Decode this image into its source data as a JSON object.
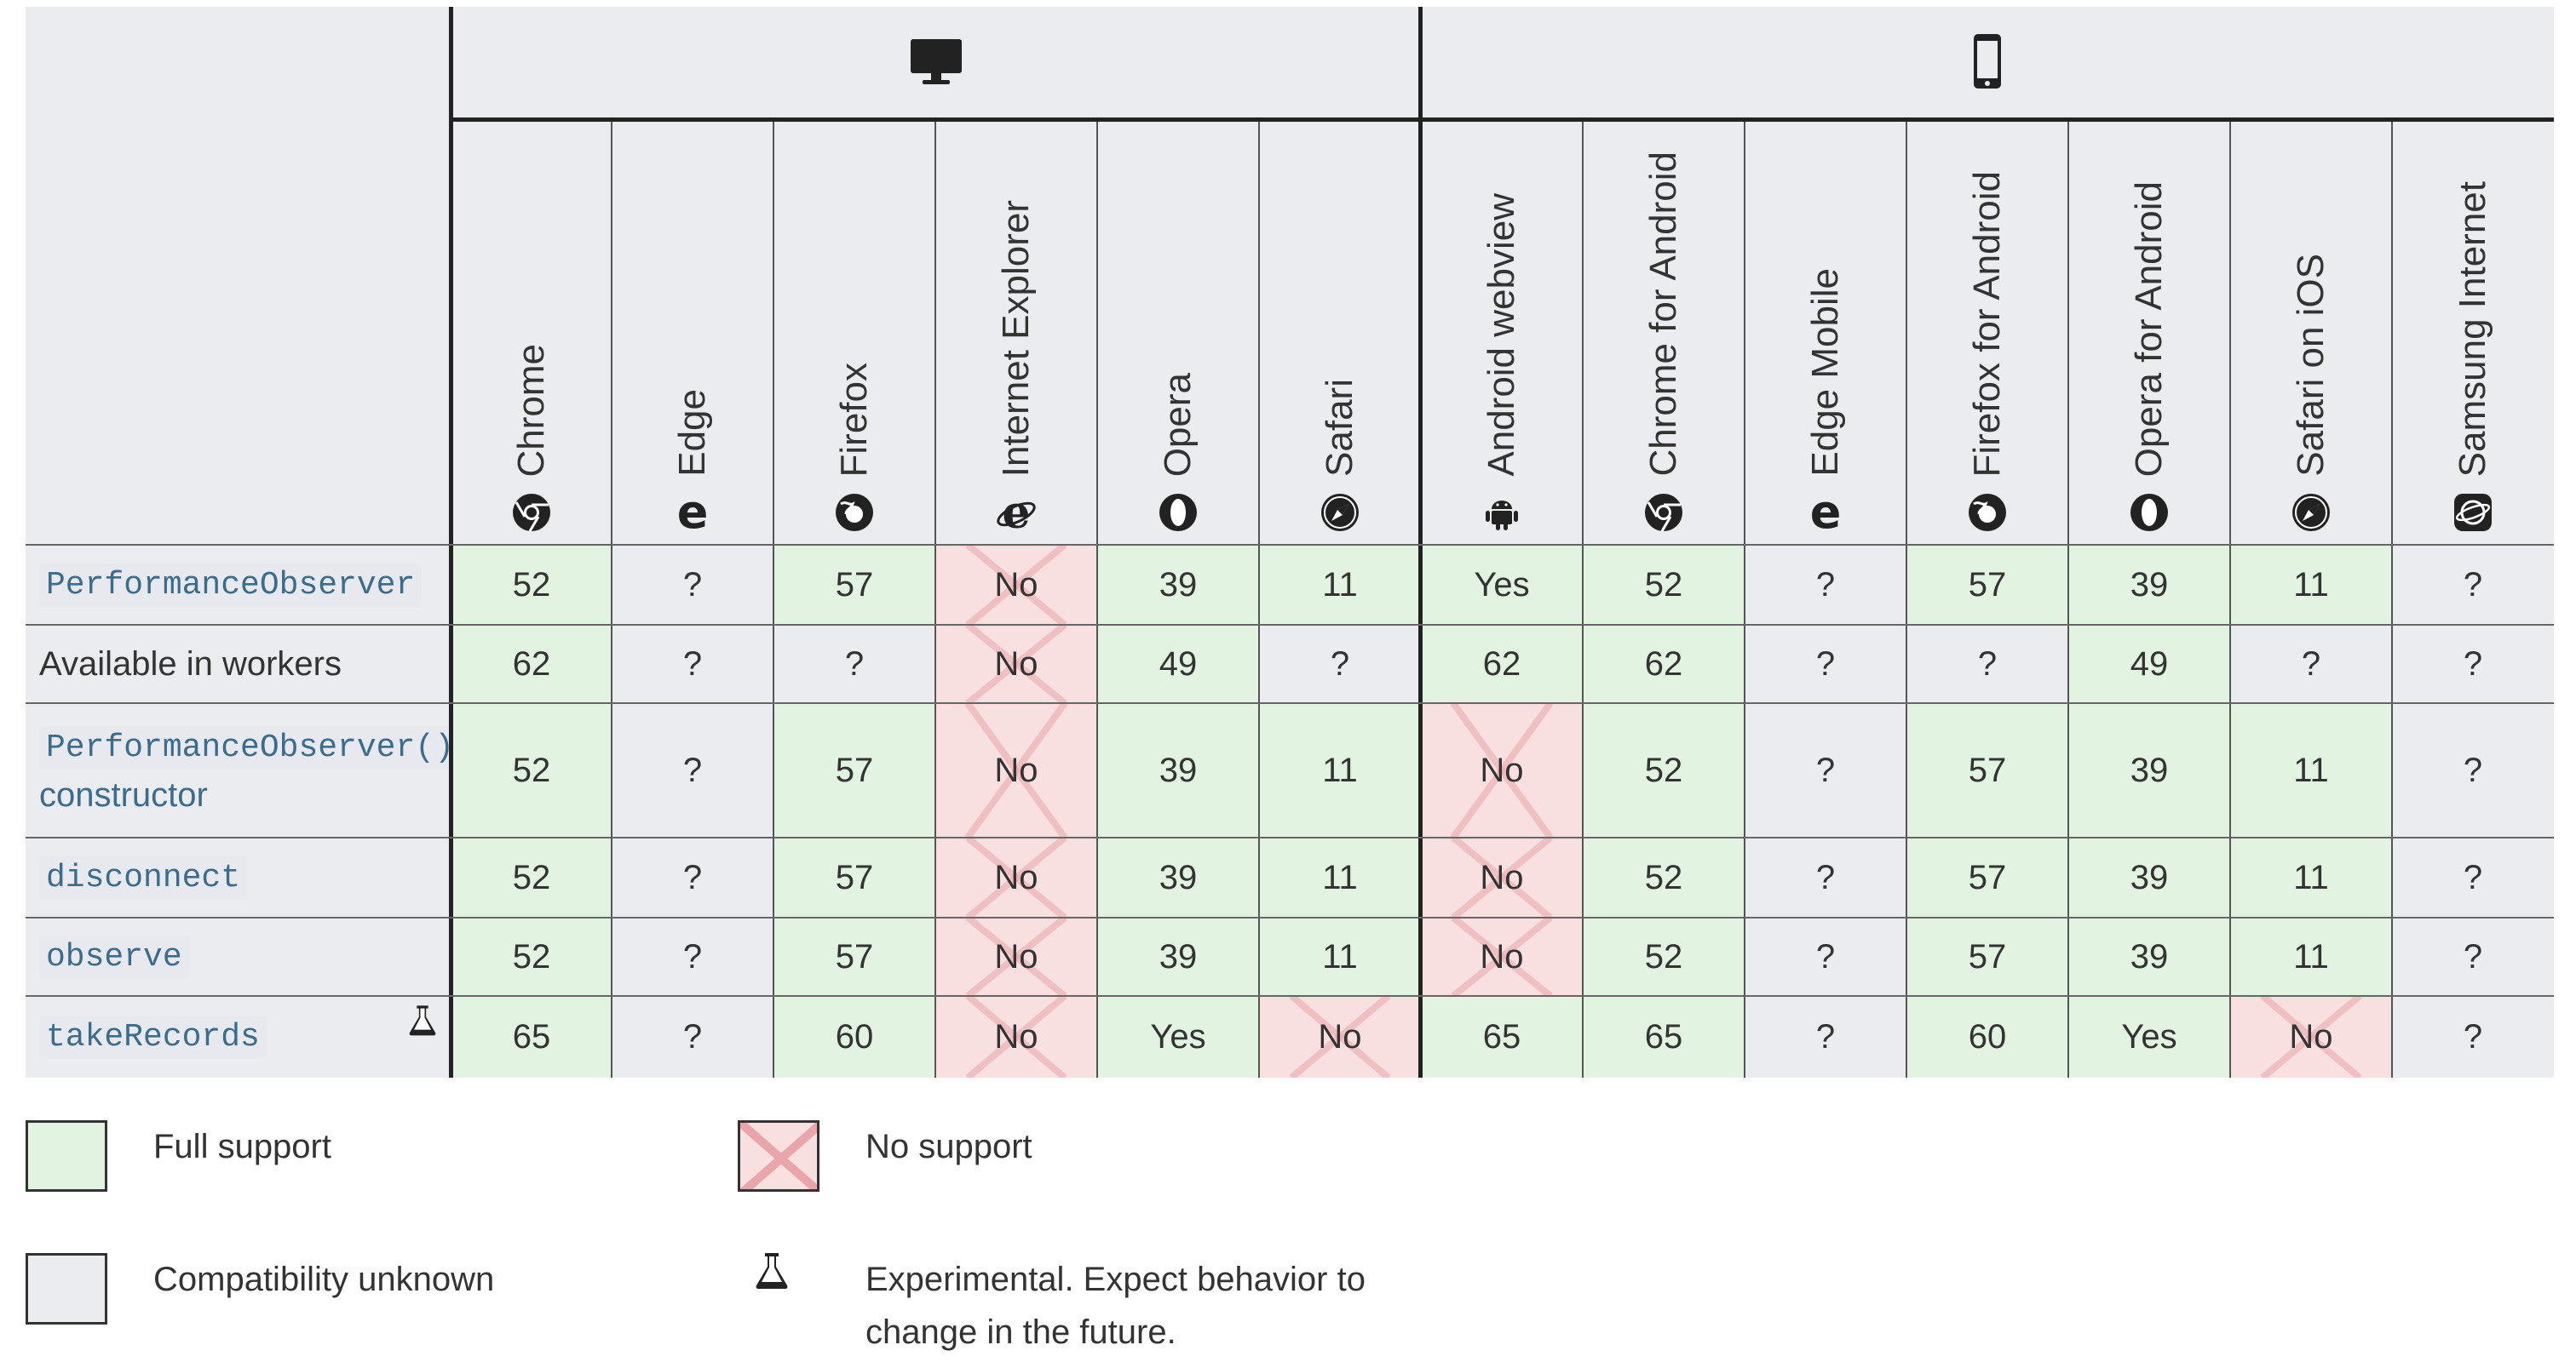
{
  "platforms": [
    {
      "name": "desktop-icon",
      "label": "desktop"
    },
    {
      "name": "mobile-icon",
      "label": "mobile"
    }
  ],
  "browsers": [
    {
      "name": "Chrome",
      "icon": "chrome-icon"
    },
    {
      "name": "Edge",
      "icon": "edge-icon"
    },
    {
      "name": "Firefox",
      "icon": "firefox-icon"
    },
    {
      "name": "Internet Explorer",
      "icon": "internet-explorer-icon"
    },
    {
      "name": "Opera",
      "icon": "opera-icon"
    },
    {
      "name": "Safari",
      "icon": "safari-icon"
    },
    {
      "name": "Android webview",
      "icon": "android-icon"
    },
    {
      "name": "Chrome for Android",
      "icon": "chrome-icon"
    },
    {
      "name": "Edge Mobile",
      "icon": "edge-icon"
    },
    {
      "name": "Firefox for Android",
      "icon": "firefox-icon"
    },
    {
      "name": "Opera for Android",
      "icon": "opera-icon"
    },
    {
      "name": "Safari on iOS",
      "icon": "safari-icon"
    },
    {
      "name": "Samsung Internet",
      "icon": "samsung-internet-icon"
    }
  ],
  "rows": [
    {
      "label": "PerformanceObserver",
      "label_style": "code",
      "sublabel": "",
      "cells": [
        [
          "52",
          "full"
        ],
        [
          "?",
          "unknown"
        ],
        [
          "57",
          "full"
        ],
        [
          "No",
          "none"
        ],
        [
          "39",
          "full"
        ],
        [
          "11",
          "full"
        ],
        [
          "Yes",
          "full"
        ],
        [
          "52",
          "full"
        ],
        [
          "?",
          "unknown"
        ],
        [
          "57",
          "full"
        ],
        [
          "39",
          "full"
        ],
        [
          "11",
          "full"
        ],
        [
          "?",
          "unknown"
        ]
      ]
    },
    {
      "label": "Available in workers",
      "label_style": "plain",
      "sublabel": "",
      "cells": [
        [
          "62",
          "full"
        ],
        [
          "?",
          "unknown"
        ],
        [
          "?",
          "unknown"
        ],
        [
          "No",
          "none"
        ],
        [
          "49",
          "full"
        ],
        [
          "?",
          "unknown"
        ],
        [
          "62",
          "full"
        ],
        [
          "62",
          "full"
        ],
        [
          "?",
          "unknown"
        ],
        [
          "?",
          "unknown"
        ],
        [
          "49",
          "full"
        ],
        [
          "?",
          "unknown"
        ],
        [
          "?",
          "unknown"
        ]
      ]
    },
    {
      "label": "PerformanceObserver()",
      "label_style": "code",
      "sublabel": "constructor",
      "cells": [
        [
          "52",
          "full"
        ],
        [
          "?",
          "unknown"
        ],
        [
          "57",
          "full"
        ],
        [
          "No",
          "none"
        ],
        [
          "39",
          "full"
        ],
        [
          "11",
          "full"
        ],
        [
          "No",
          "none"
        ],
        [
          "52",
          "full"
        ],
        [
          "?",
          "unknown"
        ],
        [
          "57",
          "full"
        ],
        [
          "39",
          "full"
        ],
        [
          "11",
          "full"
        ],
        [
          "?",
          "unknown"
        ]
      ]
    },
    {
      "label": "disconnect",
      "label_style": "code",
      "sublabel": "",
      "cells": [
        [
          "52",
          "full"
        ],
        [
          "?",
          "unknown"
        ],
        [
          "57",
          "full"
        ],
        [
          "No",
          "none"
        ],
        [
          "39",
          "full"
        ],
        [
          "11",
          "full"
        ],
        [
          "No",
          "none"
        ],
        [
          "52",
          "full"
        ],
        [
          "?",
          "unknown"
        ],
        [
          "57",
          "full"
        ],
        [
          "39",
          "full"
        ],
        [
          "11",
          "full"
        ],
        [
          "?",
          "unknown"
        ]
      ]
    },
    {
      "label": "observe",
      "label_style": "code",
      "sublabel": "",
      "cells": [
        [
          "52",
          "full"
        ],
        [
          "?",
          "unknown"
        ],
        [
          "57",
          "full"
        ],
        [
          "No",
          "none"
        ],
        [
          "39",
          "full"
        ],
        [
          "11",
          "full"
        ],
        [
          "No",
          "none"
        ],
        [
          "52",
          "full"
        ],
        [
          "?",
          "unknown"
        ],
        [
          "57",
          "full"
        ],
        [
          "39",
          "full"
        ],
        [
          "11",
          "full"
        ],
        [
          "?",
          "unknown"
        ]
      ]
    },
    {
      "label": "takeRecords",
      "label_style": "code",
      "sublabel": "",
      "experimental": true,
      "cells": [
        [
          "65",
          "full"
        ],
        [
          "?",
          "unknown"
        ],
        [
          "60",
          "full"
        ],
        [
          "No",
          "none"
        ],
        [
          "Yes",
          "full"
        ],
        [
          "No",
          "none"
        ],
        [
          "65",
          "full"
        ],
        [
          "65",
          "full"
        ],
        [
          "?",
          "unknown"
        ],
        [
          "60",
          "full"
        ],
        [
          "Yes",
          "full"
        ],
        [
          "No",
          "none"
        ],
        [
          "?",
          "unknown"
        ]
      ]
    }
  ],
  "legend": {
    "full": "Full support",
    "none": "No support",
    "unknown": "Compatibility unknown",
    "experimental_line1": "Experimental. Expect behavior to",
    "experimental_line2": "change in the future."
  },
  "colors": {
    "full": "#e2f3e1",
    "none": "#f8e0e1",
    "unknown": "#eaecf0",
    "cross": "#e9a5aa",
    "code": "#3a6c8e"
  }
}
